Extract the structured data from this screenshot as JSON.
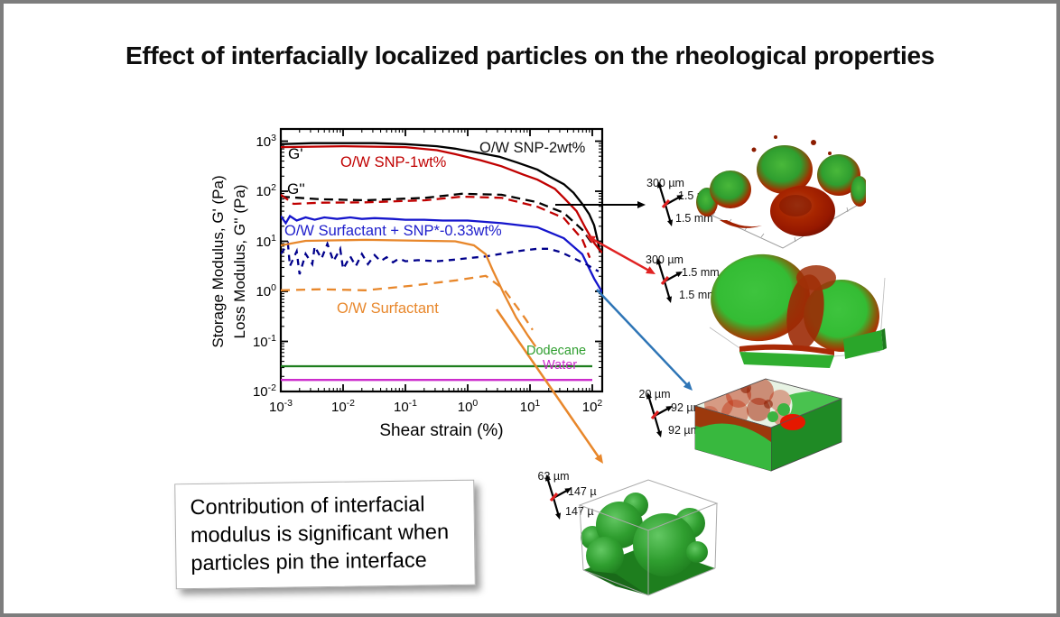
{
  "slide": {
    "title": "Effect of interfacially localized particles on the rheological properties",
    "note": "Contribution of interfacial modulus is significant when particles pin the interface"
  },
  "chart_data": {
    "type": "line",
    "xscale": "log",
    "yscale": "log",
    "xlabel": "Shear strain (%)",
    "ylabel_storage": "Storage Modulus, G' (Pa)",
    "ylabel_loss": "Loss Modulus, G'' (Pa)",
    "g_prime_label": "G'",
    "g_loss_label": "G''",
    "xlim": [
      0.001,
      145
    ],
    "ylim": [
      0.01,
      1750
    ],
    "x_ticks": [
      {
        "v": 0.001,
        "label": "10^-3"
      },
      {
        "v": 0.01,
        "label": "10^-2"
      },
      {
        "v": 0.1,
        "label": "10^-1"
      },
      {
        "v": 1,
        "label": "10^0"
      },
      {
        "v": 10,
        "label": "10^1"
      },
      {
        "v": 100,
        "label": "10^2"
      }
    ],
    "y_ticks": [
      {
        "v": 1000,
        "label": "10^3"
      },
      {
        "v": 100,
        "label": "10^2"
      },
      {
        "v": 10,
        "label": "10^1"
      },
      {
        "v": 1,
        "label": "10^0"
      },
      {
        "v": 0.1,
        "label": "10^-1"
      },
      {
        "v": 0.01,
        "label": "10^-2"
      }
    ],
    "series": [
      {
        "name": "O/W SNP-2wt% G'",
        "label": "O/W SNP-2wt%",
        "color": "#000000",
        "dash": "",
        "points": [
          [
            0.001,
            871
          ],
          [
            0.0032,
            912
          ],
          [
            0.01,
            912
          ],
          [
            0.032,
            912
          ],
          [
            0.1,
            871
          ],
          [
            0.32,
            794
          ],
          [
            0.63,
            708
          ],
          [
            1.6,
            575
          ],
          [
            3.2,
            490
          ],
          [
            6.3,
            372
          ],
          [
            13.2,
            269
          ],
          [
            20,
            200
          ],
          [
            35,
            138
          ],
          [
            50,
            93
          ],
          [
            69,
            56
          ],
          [
            89,
            35
          ],
          [
            107,
            21
          ],
          [
            120,
            11.2
          ],
          [
            132,
            6.2
          ]
        ]
      },
      {
        "name": "O/W SNP-1wt% G'",
        "label": "O/W SNP-1wt%",
        "color": "#c00000",
        "dash": "",
        "points": [
          [
            0.001,
            759
          ],
          [
            0.01,
            794
          ],
          [
            0.1,
            759
          ],
          [
            0.32,
            661
          ],
          [
            0.63,
            550
          ],
          [
            1.6,
            417
          ],
          [
            3.5,
            316
          ],
          [
            7.9,
            214
          ],
          [
            13.2,
            170
          ],
          [
            25,
            112
          ],
          [
            35,
            74
          ],
          [
            56,
            40
          ],
          [
            79,
            17.8
          ],
          [
            107,
            9.3
          ],
          [
            132,
            6.6
          ],
          [
            158,
            5.5
          ]
        ]
      },
      {
        "name": "O/W SNP-2wt% G''",
        "label": "",
        "color": "#000000",
        "dash": "10 6",
        "points": [
          [
            0.001,
            78
          ],
          [
            0.0044,
            69
          ],
          [
            0.023,
            66
          ],
          [
            0.21,
            74
          ],
          [
            0.81,
            89
          ],
          [
            3.5,
            85
          ],
          [
            13.2,
            60
          ],
          [
            35,
            37
          ],
          [
            69,
            17
          ],
          [
            98,
            9.3
          ]
        ]
      },
      {
        "name": "O/W SNP-1wt% G''",
        "label": "",
        "color": "#c00000",
        "dash": "10 6",
        "points": [
          [
            0.001,
            85
          ],
          [
            0.0016,
            56
          ],
          [
            0.0044,
            59
          ],
          [
            0.023,
            60
          ],
          [
            0.21,
            66
          ],
          [
            0.81,
            78
          ],
          [
            3.5,
            74
          ],
          [
            13.2,
            49
          ],
          [
            35,
            29
          ],
          [
            69,
            11
          ],
          [
            91,
            4.7
          ]
        ]
      },
      {
        "name": "O/W Surfactant + SNP*-0.33wt% G'",
        "label": "O/W Surfactant + SNP*-0.33wt%",
        "color": "#1515cc",
        "dash": "",
        "points": [
          [
            0.001,
            32
          ],
          [
            0.0012,
            23
          ],
          [
            0.0014,
            32
          ],
          [
            0.0018,
            26
          ],
          [
            0.0025,
            30
          ],
          [
            0.0035,
            27
          ],
          [
            0.005,
            30
          ],
          [
            0.008,
            28
          ],
          [
            0.013,
            30
          ],
          [
            0.02,
            28
          ],
          [
            0.032,
            29
          ],
          [
            0.063,
            28
          ],
          [
            0.1,
            27
          ],
          [
            0.2,
            27
          ],
          [
            0.4,
            26
          ],
          [
            1,
            26
          ],
          [
            3.5,
            23
          ],
          [
            13.2,
            19
          ],
          [
            35,
            11.5
          ],
          [
            69,
            5.5
          ],
          [
            107,
            1.8
          ],
          [
            145,
            0.95
          ]
        ]
      },
      {
        "name": "O/W Surfactant + SNP*-0.33wt% G''",
        "label": "",
        "color": "#00008b",
        "dash": "7 6",
        "points": [
          [
            0.001,
            5.6
          ],
          [
            0.0013,
            8.9
          ],
          [
            0.0014,
            3.2
          ],
          [
            0.0018,
            6.3
          ],
          [
            0.002,
            2.2
          ],
          [
            0.0025,
            5.6
          ],
          [
            0.0032,
            3.5
          ],
          [
            0.0035,
            7.9
          ],
          [
            0.0045,
            4.5
          ],
          [
            0.0056,
            8.9
          ],
          [
            0.007,
            4
          ],
          [
            0.009,
            7.1
          ],
          [
            0.01,
            2.8
          ],
          [
            0.013,
            5
          ],
          [
            0.016,
            3.2
          ],
          [
            0.02,
            5.6
          ],
          [
            0.025,
            3.5
          ],
          [
            0.032,
            5.3
          ],
          [
            0.04,
            4
          ],
          [
            0.05,
            4.8
          ],
          [
            0.063,
            3.8
          ],
          [
            0.079,
            4.5
          ],
          [
            0.1,
            4
          ],
          [
            0.16,
            4.2
          ],
          [
            0.32,
            4
          ],
          [
            0.63,
            4.3
          ],
          [
            1,
            4.6
          ],
          [
            2,
            5
          ],
          [
            4,
            5.8
          ],
          [
            8,
            6.6
          ],
          [
            13.2,
            7.1
          ],
          [
            20,
            7.1
          ],
          [
            32,
            6
          ],
          [
            50,
            4.6
          ],
          [
            79,
            3.5
          ],
          [
            126,
            2.5
          ]
        ]
      },
      {
        "name": "O/W Surfactant G'",
        "label": "O/W Surfactant",
        "color": "#e8872b",
        "dash": "",
        "points": [
          [
            0.001,
            8.3
          ],
          [
            0.0025,
            10.2
          ],
          [
            0.023,
            10.7
          ],
          [
            0.63,
            10
          ],
          [
            1.26,
            8.3
          ],
          [
            1.95,
            5.5
          ],
          [
            2.5,
            2.7
          ],
          [
            3.8,
            0.9
          ],
          [
            6,
            0.3
          ],
          [
            9.3,
            0.13
          ],
          [
            12.3,
            0.079
          ]
        ]
      },
      {
        "name": "O/W Surfactant G''",
        "label": "",
        "color": "#e8872b",
        "dash": "10 7",
        "points": [
          [
            0.001,
            1.05
          ],
          [
            0.0044,
            1.1
          ],
          [
            0.023,
            1.05
          ],
          [
            0.12,
            1.29
          ],
          [
            0.65,
            1.66
          ],
          [
            1.95,
            2.04
          ],
          [
            3.8,
            1.1
          ],
          [
            6,
            0.51
          ],
          [
            8.5,
            0.28
          ],
          [
            11,
            0.17
          ]
        ]
      },
      {
        "name": "Dodecane",
        "label": "Dodecane",
        "color": "#1e7e1e",
        "dash": "",
        "points": [
          [
            0.001,
            0.032
          ],
          [
            100,
            0.032
          ]
        ]
      },
      {
        "name": "Water",
        "label": "Water",
        "color": "#cc2ccc",
        "dash": "",
        "points": [
          [
            0.001,
            0.017
          ],
          [
            100,
            0.017
          ]
        ]
      }
    ]
  },
  "scale_annotations": [
    {
      "top": "300 µm",
      "right": "1.5 mm",
      "bottom": "1.5 mm"
    },
    {
      "top": "300 µm",
      "right": "1.5 mm",
      "bottom": "1.5 mm"
    },
    {
      "top": "20 µm",
      "right": "92 µm",
      "bottom": "92 µm"
    },
    {
      "top": "63 µm",
      "right": "147 µ",
      "bottom": "147 µ"
    }
  ]
}
